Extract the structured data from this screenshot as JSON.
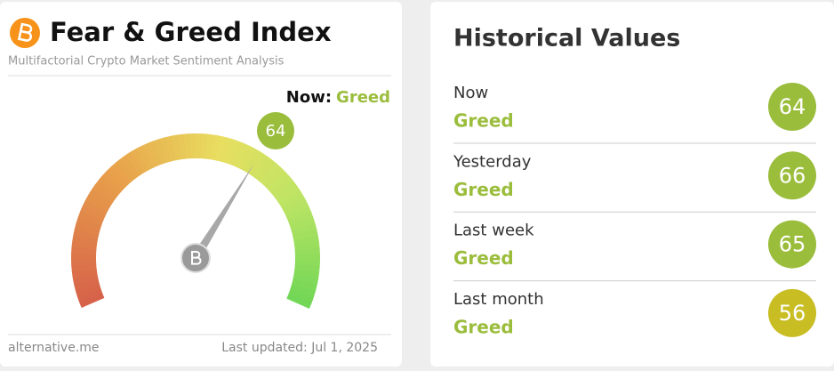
{
  "left": {
    "title": "Fear & Greed Index",
    "subtitle": "Multifactorial Crypto Market Sentiment Analysis",
    "now_label": "Now:",
    "now_class": "Greed",
    "gauge": {
      "value": 64,
      "lim": [
        0,
        100
      ],
      "color": "#9bbd3c"
    },
    "footer_left": "alternative.me",
    "footer_right": "Last updated: Jul 1, 2025"
  },
  "right": {
    "title": "Historical Values",
    "rows": [
      {
        "label": "Now",
        "class": "Greed",
        "value": 64,
        "color": "#9bbd3c"
      },
      {
        "label": "Yesterday",
        "class": "Greed",
        "value": 66,
        "color": "#9bbd3c"
      },
      {
        "label": "Last week",
        "class": "Greed",
        "value": 65,
        "color": "#9bbd3c"
      },
      {
        "label": "Last month",
        "class": "Greed",
        "value": 56,
        "color": "#c8bd22"
      }
    ]
  }
}
